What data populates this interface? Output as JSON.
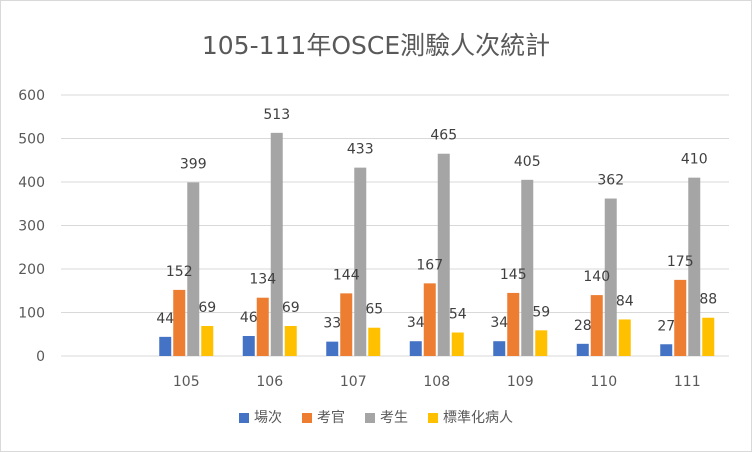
{
  "chart_data": {
    "type": "bar",
    "title": "105-111年OSCE測驗人次統計",
    "categories": [
      "",
      "105",
      "106",
      "107",
      "108",
      "109",
      "110",
      "111"
    ],
    "ylim": [
      0,
      600
    ],
    "yticks": [
      0,
      100,
      200,
      300,
      400,
      500,
      600
    ],
    "grid": true,
    "legend_position": "bottom",
    "series": [
      {
        "name": "場次",
        "color": "#4472C4",
        "values": [
          null,
          44,
          46,
          33,
          34,
          34,
          28,
          27
        ]
      },
      {
        "name": "考官",
        "color": "#ED7D31",
        "values": [
          null,
          152,
          134,
          144,
          167,
          145,
          140,
          175
        ]
      },
      {
        "name": "考生",
        "color": "#A5A5A5",
        "values": [
          null,
          399,
          513,
          433,
          465,
          405,
          362,
          410
        ]
      },
      {
        "name": "標準化病人",
        "color": "#FFC000",
        "values": [
          null,
          69,
          69,
          65,
          54,
          59,
          84,
          88
        ]
      }
    ]
  }
}
